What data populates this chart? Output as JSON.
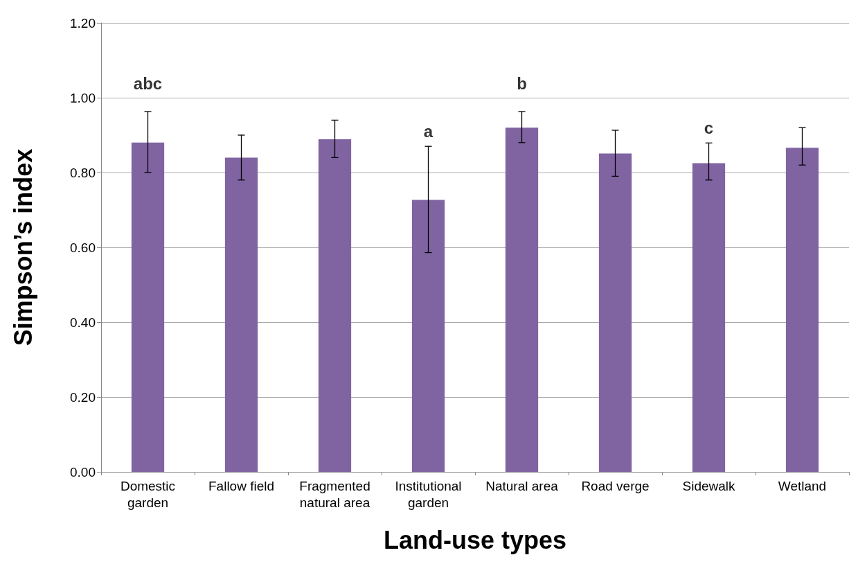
{
  "chart_data": {
    "type": "bar",
    "xlabel": "Land-use types",
    "ylabel": "Simpson’s index",
    "categories": [
      "Domestic garden",
      "Fallow field",
      "Fragmented natural area",
      "Institutional garden",
      "Natural area",
      "Road verge",
      "Sidewalk",
      "Wetland"
    ],
    "values": [
      0.88,
      0.84,
      0.889,
      0.727,
      0.92,
      0.851,
      0.825,
      0.866
    ],
    "errors": [
      [
        0.8,
        0.963
      ],
      [
        0.78,
        0.9
      ],
      [
        0.84,
        0.94
      ],
      [
        0.586,
        0.87
      ],
      [
        0.88,
        0.963
      ],
      [
        0.79,
        0.913
      ],
      [
        0.78,
        0.879
      ],
      [
        0.82,
        0.92
      ]
    ],
    "color": "#8064a2",
    "ylim": [
      0,
      1.2
    ],
    "yticks": [
      {
        "value": 0,
        "label": "0.00"
      },
      {
        "value": 0.2,
        "label": "0.20"
      },
      {
        "value": 0.4,
        "label": "0.40"
      },
      {
        "value": 0.6,
        "label": "0.60"
      },
      {
        "value": 0.8,
        "label": "0.80"
      },
      {
        "value": 1.0,
        "label": "1.00"
      },
      {
        "value": 1.2,
        "label": "1.20"
      }
    ],
    "grid": "y",
    "annotations": [
      "abc",
      "a",
      "b",
      "c"
    ]
  }
}
